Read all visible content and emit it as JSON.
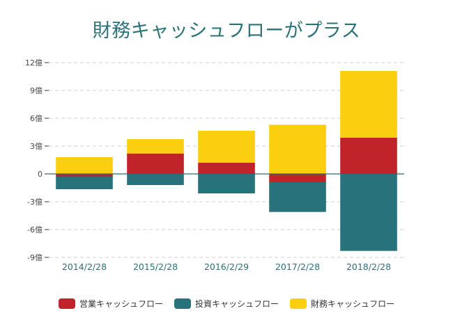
{
  "chart_data": {
    "type": "bar",
    "stacked": true,
    "title": "財務キャッシュフローがプラス",
    "xlabel": "",
    "ylabel": "",
    "categories": [
      "2014/2/28",
      "2015/2/28",
      "2016/2/29",
      "2017/2/28",
      "2018/2/28"
    ],
    "series": [
      {
        "name": "営業キャッシュフロー",
        "color": "#c1232b",
        "values": [
          -0.3,
          2.2,
          1.2,
          -0.9,
          3.9
        ]
      },
      {
        "name": "投資キャッシュフロー",
        "color": "#27727b",
        "values": [
          -1.35,
          -1.2,
          -2.1,
          -3.2,
          -8.3
        ]
      },
      {
        "name": "財務キャッシュフロー",
        "color": "#fcce10",
        "values": [
          1.8,
          1.55,
          3.45,
          5.3,
          7.2
        ]
      }
    ],
    "ylim": [
      -9,
      12
    ],
    "yticks": [
      12,
      9,
      6,
      3,
      0,
      -3,
      -6,
      -9
    ],
    "ytick_labels": [
      "12億",
      "9億",
      "6億",
      "3億",
      "0",
      "-3億",
      "-6億",
      "-9億"
    ],
    "unit": "億",
    "grid": true,
    "legend_position": "bottom"
  }
}
